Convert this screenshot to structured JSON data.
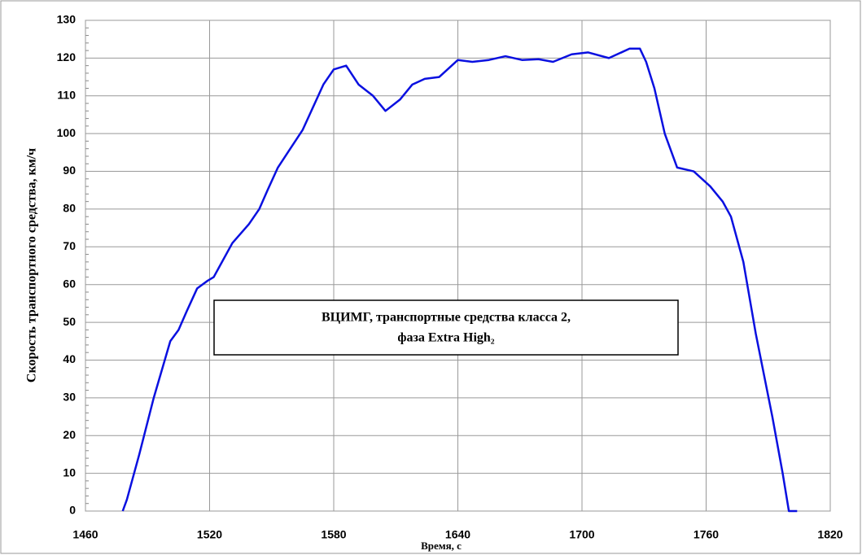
{
  "chart_data": {
    "type": "line",
    "xlabel": "Время, с",
    "ylabel": "Скорость транспортного средства, км/ч",
    "annotation": [
      "ВЦИМГ, транспортные средства класса 2,",
      "фаза Extra High₂"
    ],
    "x": [
      1478,
      1480,
      1486,
      1493,
      1501,
      1505,
      1509,
      1514,
      1519,
      1522,
      1525,
      1531,
      1539,
      1544,
      1548,
      1553,
      1559,
      1565,
      1570,
      1575,
      1580,
      1586,
      1592,
      1599,
      1605,
      1612,
      1618,
      1624,
      1631,
      1635,
      1640,
      1647,
      1655,
      1663,
      1671,
      1679,
      1686,
      1695,
      1703,
      1713,
      1719,
      1723,
      1728,
      1731,
      1735,
      1740,
      1746,
      1754,
      1762,
      1768,
      1772,
      1778,
      1784,
      1792,
      1797,
      1800,
      1804
    ],
    "series": [
      {
        "name": "speed",
        "color": "#0a10e0",
        "values": [
          0,
          3,
          15,
          30,
          45,
          48,
          53,
          59,
          61,
          62,
          65,
          71,
          76,
          80,
          85,
          91,
          96,
          101,
          107,
          113,
          117,
          118,
          113,
          110,
          106,
          109,
          113,
          114.5,
          115,
          117,
          119.5,
          119,
          119.5,
          120.5,
          119.5,
          119.7,
          119,
          121,
          121.5,
          120,
          121.5,
          122.5,
          122.5,
          119,
          112,
          100,
          91,
          90,
          86,
          82,
          78,
          66,
          47,
          25,
          10,
          0,
          0
        ]
      }
    ],
    "xlim": [
      1460,
      1820
    ],
    "xticks": [
      1460,
      1520,
      1580,
      1640,
      1700,
      1760,
      1820
    ],
    "ylim": [
      0,
      130
    ],
    "yticks": [
      0,
      10,
      20,
      30,
      40,
      50,
      60,
      70,
      80,
      90,
      100,
      110,
      120,
      130
    ],
    "grid": true
  }
}
